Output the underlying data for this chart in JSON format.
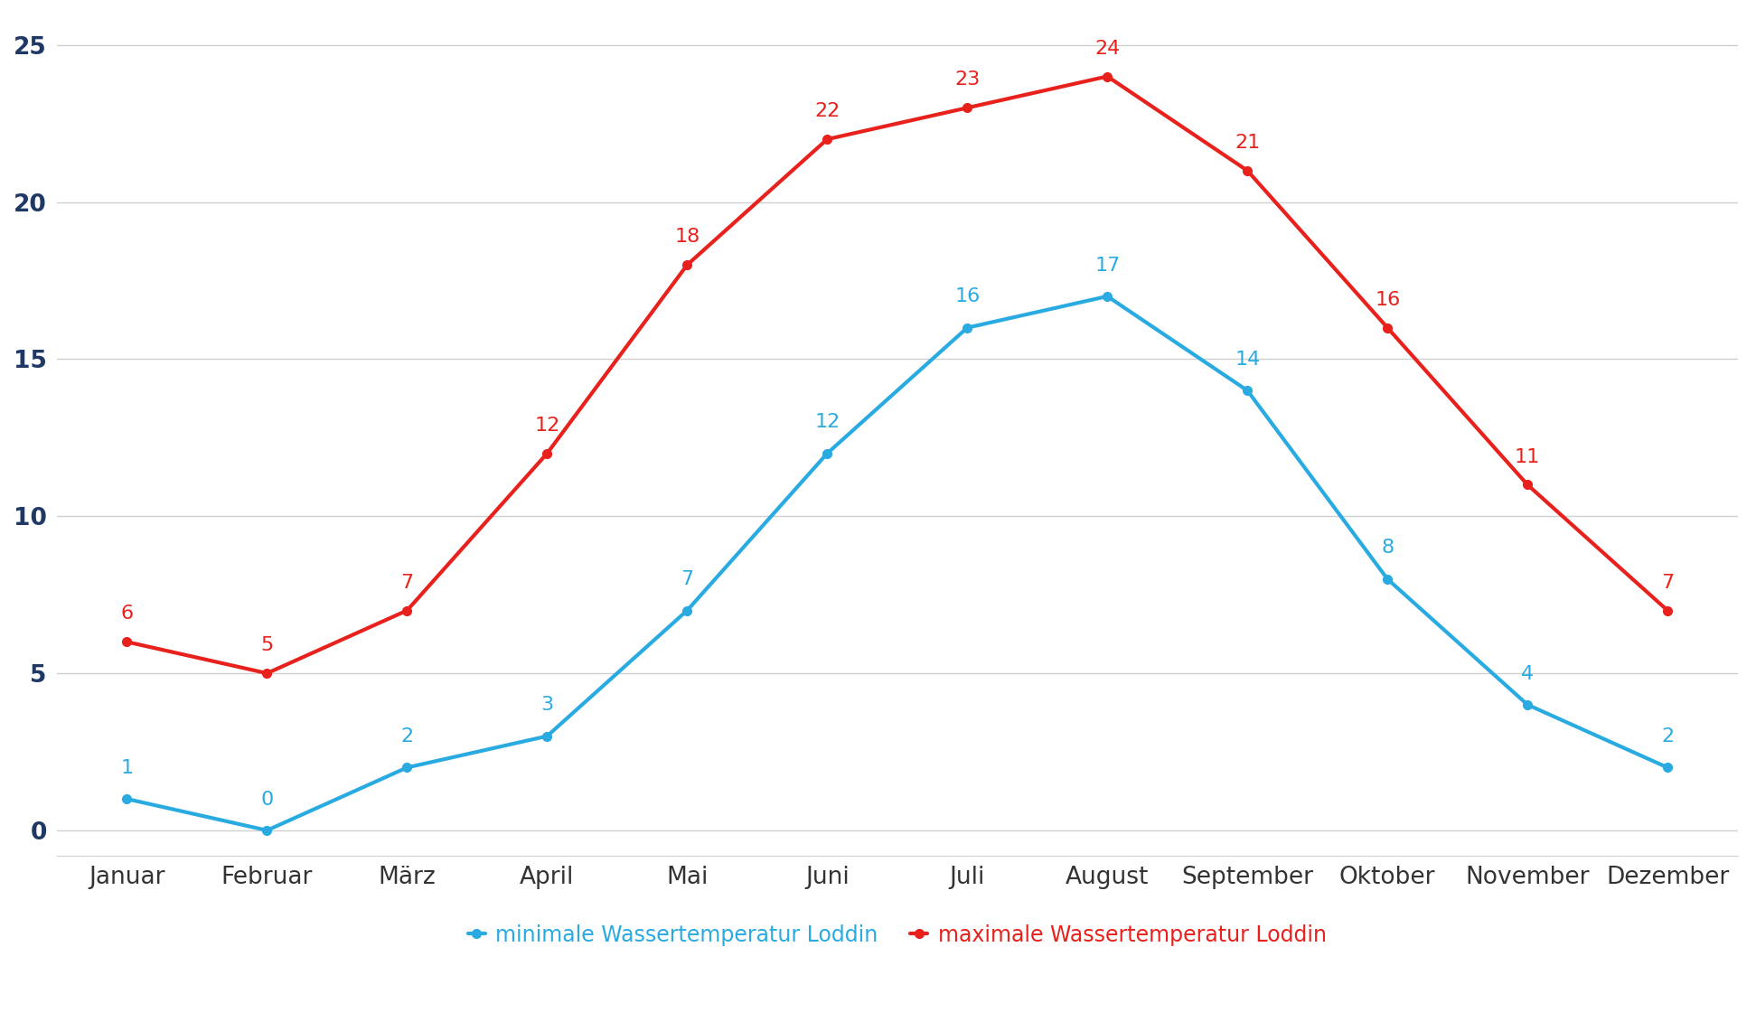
{
  "months": [
    "Januar",
    "Februar",
    "März",
    "April",
    "Mai",
    "Juni",
    "Juli",
    "August",
    "September",
    "Oktober",
    "November",
    "Dezember"
  ],
  "min_temps": [
    1,
    0,
    2,
    3,
    7,
    12,
    16,
    17,
    14,
    8,
    4,
    2
  ],
  "max_temps": [
    6,
    5,
    7,
    12,
    18,
    22,
    23,
    24,
    21,
    16,
    11,
    7
  ],
  "min_color": "#29ABE2",
  "max_color": "#E8211D",
  "min_label": "minimale Wassertemperatur Loddin",
  "max_label": "maximale Wassertemperatur Loddin",
  "ylim": [
    -0.8,
    26.0
  ],
  "yticks": [
    0,
    5,
    10,
    15,
    20,
    25
  ],
  "background_color": "#FFFFFF",
  "grid_color": "#D0D0D0",
  "line_width": 3.0,
  "marker_size": 7,
  "marker_style": "o",
  "tick_fontsize": 19,
  "ytick_color": "#1F3864",
  "legend_fontsize": 17,
  "annotation_fontsize": 16,
  "annotation_fontweight": "normal"
}
